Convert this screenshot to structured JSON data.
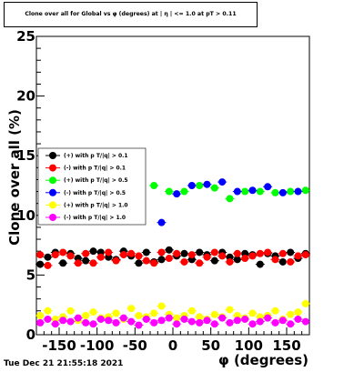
{
  "title": "Clone  over all for Global vs φ (degrees) at | η | <= 1.0 at pT > 0.11",
  "footer": "Tue Dec 21 21:55:18 2021",
  "chart_data": {
    "type": "scatter",
    "xlabel": "φ (degrees)",
    "ylabel": "Clone  over all (%)",
    "xlim": [
      -180,
      180
    ],
    "ylim": [
      0,
      25
    ],
    "x_ticks": [
      "-150",
      "-100",
      "-50",
      "0",
      "50",
      "100",
      "150"
    ],
    "y_ticks": [
      "0",
      "5",
      "10",
      "15",
      "20",
      "25"
    ],
    "legend_position": "left-middle",
    "series": [
      {
        "name": "(+) with p T/|q| > 0.1",
        "color": "#000000",
        "x": [
          -175,
          -165,
          -155,
          -145,
          -135,
          -125,
          -115,
          -105,
          -95,
          -85,
          -75,
          -65,
          -55,
          -45,
          -35,
          -25,
          -15,
          -5,
          5,
          15,
          25,
          35,
          45,
          55,
          65,
          75,
          85,
          95,
          105,
          115,
          125,
          135,
          145,
          155,
          165,
          175
        ],
        "y": [
          5.9,
          6.5,
          6.9,
          6.0,
          6.8,
          6.4,
          6.2,
          7.0,
          6.9,
          6.5,
          6.3,
          7.0,
          6.6,
          6.0,
          6.9,
          6.1,
          6.3,
          7.1,
          6.6,
          6.8,
          6.3,
          6.9,
          6.7,
          6.2,
          6.9,
          6.5,
          6.3,
          6.8,
          6.7,
          5.9,
          6.8,
          6.6,
          6.1,
          6.9,
          6.4,
          6.8
        ]
      },
      {
        "name": "(-) with p T/|q| > 0.1",
        "color": "#ff0000",
        "x": [
          -175,
          -165,
          -155,
          -145,
          -135,
          -125,
          -115,
          -105,
          -95,
          -85,
          -75,
          -65,
          -55,
          -45,
          -35,
          -25,
          -15,
          -5,
          5,
          15,
          25,
          35,
          45,
          55,
          65,
          75,
          85,
          95,
          105,
          115,
          125,
          135,
          145,
          155,
          165,
          175
        ],
        "y": [
          6.7,
          5.8,
          6.7,
          6.9,
          6.6,
          6.0,
          6.8,
          6.0,
          6.5,
          6.9,
          6.2,
          6.7,
          6.8,
          6.6,
          6.2,
          6.0,
          6.9,
          6.4,
          6.8,
          6.1,
          6.7,
          6.0,
          6.5,
          6.9,
          6.6,
          6.1,
          6.8,
          6.4,
          6.6,
          6.8,
          6.9,
          6.3,
          6.8,
          6.1,
          6.6,
          6.7
        ]
      },
      {
        "name": "(+) with p T/|q| > 0.5",
        "color": "#00ff00",
        "x": [
          -25,
          -5,
          15,
          35,
          55,
          75,
          95,
          115,
          135,
          155,
          175
        ],
        "y": [
          12.5,
          12.0,
          12.0,
          12.5,
          12.3,
          11.4,
          12.0,
          12.0,
          11.9,
          12.0,
          12.1
        ]
      },
      {
        "name": "(-) with p T/|q| > 0.5",
        "color": "#0000ff",
        "x": [
          -15,
          5,
          25,
          45,
          65,
          85,
          105,
          125,
          145,
          165
        ],
        "y": [
          9.4,
          11.8,
          12.5,
          12.6,
          12.8,
          12.0,
          12.1,
          12.4,
          11.9,
          12.0
        ]
      },
      {
        "name": "(+) with p T/|q| > 1.0",
        "color": "#ffff00",
        "x": [
          -175,
          -165,
          -155,
          -145,
          -135,
          -125,
          -115,
          -105,
          -95,
          -85,
          -75,
          -65,
          -55,
          -45,
          -35,
          -25,
          -15,
          -5,
          5,
          15,
          25,
          35,
          45,
          55,
          65,
          75,
          85,
          95,
          105,
          115,
          125,
          135,
          145,
          155,
          165,
          175
        ],
        "y": [
          1.6,
          2.0,
          1.3,
          1.5,
          2.0,
          1.2,
          1.6,
          1.9,
          1.4,
          1.5,
          1.8,
          1.3,
          2.2,
          1.6,
          1.5,
          1.8,
          2.4,
          1.7,
          1.4,
          1.6,
          2.0,
          1.5,
          1.3,
          1.7,
          1.5,
          2.1,
          1.6,
          1.4,
          1.8,
          1.5,
          1.6,
          2.0,
          1.3,
          1.7,
          1.9,
          2.6
        ]
      },
      {
        "name": "(-) with p T/|q| > 1.0",
        "color": "#ff00ff",
        "x": [
          -175,
          -165,
          -155,
          -145,
          -135,
          -125,
          -115,
          -105,
          -95,
          -85,
          -75,
          -65,
          -55,
          -45,
          -35,
          -25,
          -15,
          -5,
          5,
          15,
          25,
          35,
          45,
          55,
          65,
          75,
          85,
          95,
          105,
          115,
          125,
          135,
          145,
          155,
          165,
          175
        ],
        "y": [
          1.0,
          1.3,
          0.9,
          1.2,
          1.1,
          1.4,
          1.0,
          0.9,
          1.3,
          1.2,
          1.0,
          1.4,
          1.1,
          0.8,
          1.3,
          1.0,
          1.2,
          1.4,
          0.9,
          1.3,
          1.1,
          1.0,
          1.2,
          0.9,
          1.4,
          1.0,
          1.2,
          1.3,
          0.9,
          1.1,
          1.4,
          1.0,
          1.2,
          0.9,
          1.3,
          1.1
        ]
      }
    ]
  }
}
